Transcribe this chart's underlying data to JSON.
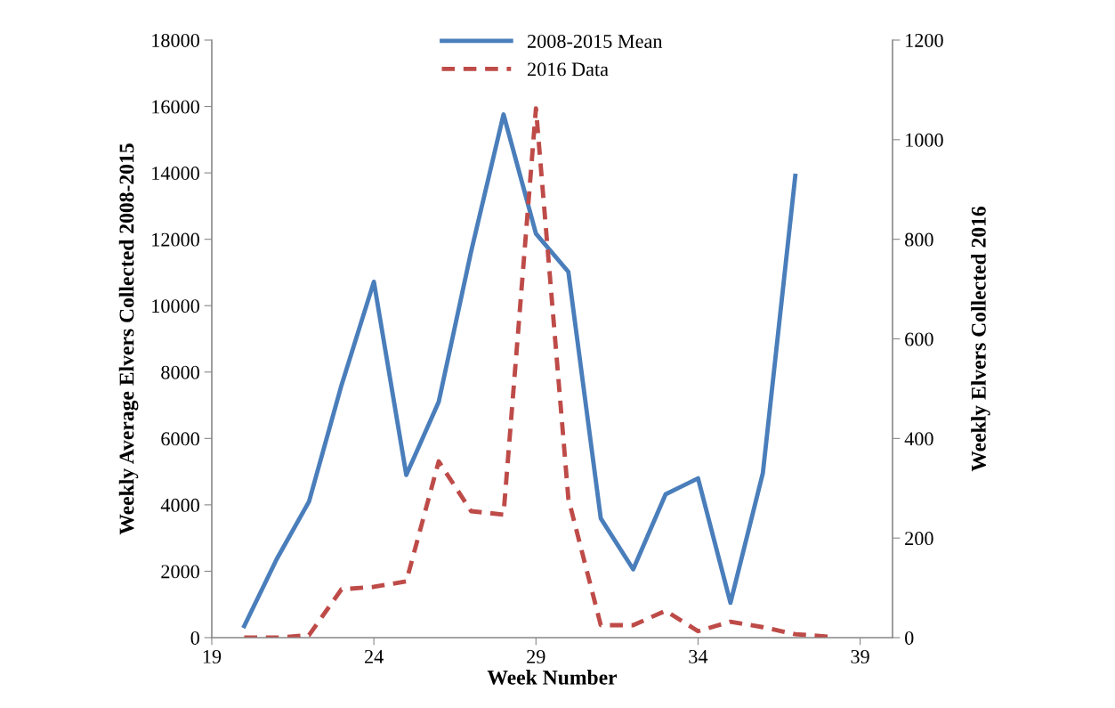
{
  "chart_data": {
    "type": "line",
    "xlabel": "Week Number",
    "ylabel": "Weekly Average Elvers Collected 2008-2015",
    "y2label": "Weekly Elvers Collected 2016",
    "xlim": [
      19,
      40
    ],
    "xticks": [
      19,
      24,
      29,
      34,
      39
    ],
    "ylim": [
      0,
      18000
    ],
    "yticks": [
      0,
      2000,
      4000,
      6000,
      8000,
      10000,
      12000,
      14000,
      16000,
      18000
    ],
    "y2lim": [
      0,
      1200
    ],
    "y2ticks": [
      0,
      200,
      400,
      600,
      800,
      1000,
      1200
    ],
    "grid": false,
    "legend": "top",
    "marker": "none",
    "series": [
      {
        "name": "2008-2015 Mean",
        "color": "#4a7ebb",
        "line_style": "solid",
        "x": [
          20,
          21,
          22,
          23,
          24,
          25,
          26,
          27,
          28,
          29,
          30,
          31,
          32,
          33,
          34,
          35,
          36,
          37
        ],
        "values": [
          350,
          2360,
          4100,
          7600,
          10720,
          4900,
          7100,
          11630,
          15760,
          12170,
          11020,
          3590,
          2060,
          4320,
          4800,
          1050,
          4960,
          13910
        ]
      },
      {
        "name": "2016 Data",
        "color": "#be4b48",
        "line_style": "dashed",
        "axis": "y2",
        "x": [
          20,
          21,
          22,
          23,
          24,
          25,
          26,
          27,
          28,
          29,
          30,
          31,
          32,
          33,
          34,
          35,
          36,
          37,
          38
        ],
        "values": [
          0,
          0,
          5,
          97,
          102,
          113,
          354,
          254,
          247,
          1063,
          279,
          25,
          25,
          54,
          13,
          32,
          21,
          7,
          2
        ]
      }
    ]
  }
}
